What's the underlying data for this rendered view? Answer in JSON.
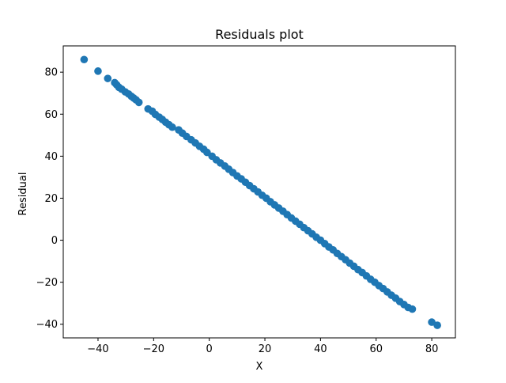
{
  "chart_data": {
    "type": "scatter",
    "title": "Residuals plot",
    "xlabel": "X",
    "ylabel": "Residual",
    "xlim": [
      -52.5,
      88.5
    ],
    "ylim": [
      -46.5,
      92.5
    ],
    "xticks": [
      -40,
      -20,
      0,
      20,
      40,
      60,
      80
    ],
    "yticks": [
      -40,
      -20,
      0,
      20,
      40,
      60,
      80
    ],
    "grid": false,
    "legend": "none",
    "marker_color": "#1f77b4",
    "series": [
      {
        "points": [
          [
            -45.0,
            86.0
          ],
          [
            -40.0,
            80.5
          ],
          [
            -36.5,
            77.0
          ],
          [
            -34.0,
            75.0
          ],
          [
            -33.3,
            74.0
          ],
          [
            -32.5,
            72.8
          ],
          [
            -31.5,
            71.9
          ],
          [
            -30.2,
            70.6
          ],
          [
            -29.0,
            69.6
          ],
          [
            -28.0,
            68.5
          ],
          [
            -27.2,
            67.7
          ],
          [
            -26.3,
            66.8
          ],
          [
            -25.3,
            65.6
          ],
          [
            -22.0,
            62.5
          ],
          [
            -20.5,
            61.4
          ],
          [
            -19.4,
            59.9
          ],
          [
            -18.0,
            58.6
          ],
          [
            -16.9,
            57.5
          ],
          [
            -15.7,
            56.2
          ],
          [
            -14.5,
            55.0
          ],
          [
            -13.3,
            53.8
          ],
          [
            -11.0,
            52.5
          ],
          [
            -9.7,
            51.0
          ],
          [
            -8.2,
            49.4
          ],
          [
            -6.5,
            47.8
          ],
          [
            -5.0,
            46.3
          ],
          [
            -3.5,
            44.7
          ],
          [
            -2.0,
            43.3
          ],
          [
            -0.8,
            41.8
          ],
          [
            1.0,
            40.0
          ],
          [
            2.5,
            38.3
          ],
          [
            4.0,
            36.8
          ],
          [
            5.6,
            35.3
          ],
          [
            7.0,
            33.8
          ],
          [
            8.5,
            32.2
          ],
          [
            10.0,
            30.6
          ],
          [
            11.5,
            29.2
          ],
          [
            13.0,
            27.6
          ],
          [
            14.5,
            26.0
          ],
          [
            16.0,
            24.5
          ],
          [
            17.5,
            23.0
          ],
          [
            19.0,
            21.4
          ],
          [
            20.5,
            20.0
          ],
          [
            22.0,
            18.3
          ],
          [
            23.5,
            16.8
          ],
          [
            25.0,
            15.3
          ],
          [
            26.5,
            13.8
          ],
          [
            28.0,
            12.2
          ],
          [
            29.5,
            10.6
          ],
          [
            31.0,
            9.1
          ],
          [
            32.5,
            7.6
          ],
          [
            34.0,
            6.0
          ],
          [
            35.5,
            4.5
          ],
          [
            37.0,
            3.0
          ],
          [
            38.5,
            1.4
          ],
          [
            40.0,
            0.0
          ],
          [
            41.5,
            -1.6
          ],
          [
            43.0,
            -3.2
          ],
          [
            44.5,
            -4.6
          ],
          [
            46.0,
            -6.3
          ],
          [
            47.5,
            -7.8
          ],
          [
            49.0,
            -9.3
          ],
          [
            50.5,
            -10.9
          ],
          [
            52.0,
            -12.4
          ],
          [
            53.5,
            -14.0
          ],
          [
            55.0,
            -15.4
          ],
          [
            56.5,
            -17.0
          ],
          [
            58.0,
            -18.6
          ],
          [
            59.5,
            -20.0
          ],
          [
            61.0,
            -21.6
          ],
          [
            62.5,
            -23.0
          ],
          [
            64.0,
            -24.6
          ],
          [
            65.5,
            -26.2
          ],
          [
            67.0,
            -27.6
          ],
          [
            68.5,
            -29.2
          ],
          [
            70.0,
            -30.6
          ],
          [
            71.5,
            -32.0
          ],
          [
            73.0,
            -32.8
          ],
          [
            80.0,
            -39.0
          ],
          [
            82.0,
            -40.5
          ]
        ]
      }
    ]
  }
}
